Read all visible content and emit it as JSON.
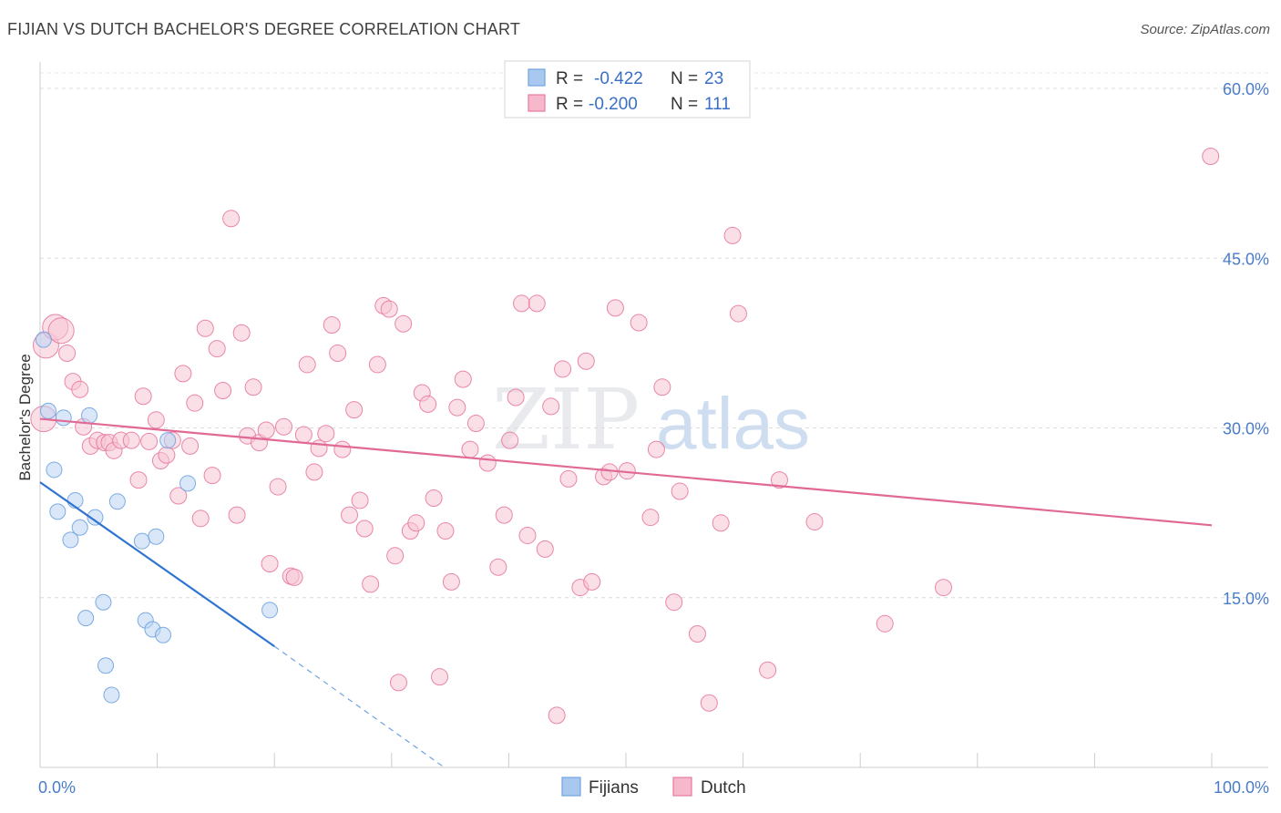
{
  "header": {
    "title": "FIJIAN VS DUTCH BACHELOR'S DEGREE CORRELATION CHART",
    "source": "Source: ZipAtlas.com"
  },
  "watermark": {
    "part1": "ZIP",
    "part2": "atlas"
  },
  "legend": {
    "rows": [
      {
        "r_label": "R =",
        "r_value": "-0.422",
        "n_label": "N =",
        "n_value": "23",
        "color": "#a8c8f0"
      },
      {
        "r_label": "R =",
        "r_value": "-0.200",
        "n_label": "N =",
        "n_value": "111",
        "color": "#f7b8cc"
      }
    ]
  },
  "bottom_legend": [
    {
      "label": "Fijians",
      "color": "#a8c8f0"
    },
    {
      "label": "Dutch",
      "color": "#f7b8cc"
    }
  ],
  "chart_data": {
    "type": "scatter",
    "ylabel": "Bachelor's Degree",
    "xlim": [
      0,
      100
    ],
    "ylim": [
      0,
      60
    ],
    "x_tick_labels": [
      {
        "value": 0,
        "label": "0.0%"
      },
      {
        "value": 100,
        "label": "100.0%"
      }
    ],
    "y_tick_labels": [
      {
        "value": 15,
        "label": "15.0%"
      },
      {
        "value": 30,
        "label": "30.0%"
      },
      {
        "value": 45,
        "label": "45.0%"
      },
      {
        "value": 60,
        "label": "60.0%"
      }
    ],
    "grid": "horizontal dashed",
    "series": [
      {
        "name": "Fijians",
        "color": "#6fa3e0",
        "fill": "#b9d3f4",
        "points": [
          [
            0.3,
            37.8
          ],
          [
            0.7,
            31.5
          ],
          [
            1.2,
            26.3
          ],
          [
            1.5,
            22.6
          ],
          [
            2.0,
            30.9
          ],
          [
            2.6,
            20.1
          ],
          [
            3.0,
            23.6
          ],
          [
            3.4,
            21.2
          ],
          [
            3.9,
            13.2
          ],
          [
            4.2,
            31.1
          ],
          [
            4.7,
            22.1
          ],
          [
            5.4,
            14.6
          ],
          [
            5.6,
            9.0
          ],
          [
            6.1,
            6.4
          ],
          [
            6.6,
            23.5
          ],
          [
            8.7,
            20.0
          ],
          [
            9.0,
            13.0
          ],
          [
            9.6,
            12.2
          ],
          [
            9.9,
            20.4
          ],
          [
            10.5,
            11.7
          ],
          [
            10.9,
            28.9
          ],
          [
            12.6,
            25.1
          ],
          [
            19.6,
            13.9
          ]
        ],
        "trend": {
          "x_start": 0,
          "y_start": 25.2,
          "x_solid_end": 20,
          "y_solid_end": 10.7,
          "x_dash_end": 34.5,
          "y_dash_end": 0
        }
      },
      {
        "name": "Dutch",
        "color": "#e77aa0",
        "fill": "#f8c4d4",
        "points": [
          [
            0.3,
            30.8
          ],
          [
            0.5,
            37.3
          ],
          [
            1.3,
            38.9
          ],
          [
            1.8,
            38.6
          ],
          [
            2.3,
            36.6
          ],
          [
            2.8,
            34.1
          ],
          [
            3.4,
            33.4
          ],
          [
            3.7,
            30.1
          ],
          [
            4.3,
            28.4
          ],
          [
            4.9,
            28.9
          ],
          [
            5.5,
            28.7
          ],
          [
            5.9,
            28.7
          ],
          [
            6.3,
            28.0
          ],
          [
            6.9,
            28.9
          ],
          [
            7.8,
            28.9
          ],
          [
            8.4,
            25.4
          ],
          [
            8.8,
            32.8
          ],
          [
            9.3,
            28.8
          ],
          [
            9.9,
            30.7
          ],
          [
            10.3,
            27.1
          ],
          [
            10.8,
            27.6
          ],
          [
            11.3,
            28.9
          ],
          [
            11.8,
            24.0
          ],
          [
            12.2,
            34.8
          ],
          [
            12.8,
            28.4
          ],
          [
            13.2,
            32.2
          ],
          [
            13.7,
            22.0
          ],
          [
            14.1,
            38.8
          ],
          [
            14.7,
            25.8
          ],
          [
            15.1,
            37.0
          ],
          [
            15.6,
            33.3
          ],
          [
            16.3,
            48.5
          ],
          [
            16.8,
            22.3
          ],
          [
            17.2,
            38.4
          ],
          [
            17.7,
            29.3
          ],
          [
            18.2,
            33.6
          ],
          [
            18.7,
            28.7
          ],
          [
            19.3,
            29.8
          ],
          [
            19.6,
            18.0
          ],
          [
            20.3,
            24.8
          ],
          [
            20.8,
            30.1
          ],
          [
            21.4,
            16.9
          ],
          [
            21.7,
            16.8
          ],
          [
            22.5,
            29.4
          ],
          [
            22.8,
            35.6
          ],
          [
            23.4,
            26.1
          ],
          [
            23.8,
            28.2
          ],
          [
            24.4,
            29.5
          ],
          [
            24.9,
            39.1
          ],
          [
            25.4,
            36.6
          ],
          [
            25.8,
            28.1
          ],
          [
            26.4,
            22.3
          ],
          [
            26.8,
            31.6
          ],
          [
            27.3,
            23.6
          ],
          [
            27.7,
            21.1
          ],
          [
            28.2,
            16.2
          ],
          [
            28.8,
            35.6
          ],
          [
            29.3,
            40.8
          ],
          [
            29.8,
            40.5
          ],
          [
            30.3,
            18.7
          ],
          [
            30.6,
            7.5
          ],
          [
            31.0,
            39.2
          ],
          [
            31.6,
            20.9
          ],
          [
            32.1,
            21.6
          ],
          [
            32.6,
            33.1
          ],
          [
            33.1,
            32.1
          ],
          [
            33.6,
            23.8
          ],
          [
            34.1,
            8.0
          ],
          [
            34.6,
            20.9
          ],
          [
            35.1,
            16.4
          ],
          [
            35.6,
            31.8
          ],
          [
            36.1,
            34.3
          ],
          [
            36.7,
            28.1
          ],
          [
            37.2,
            30.4
          ],
          [
            38.2,
            26.9
          ],
          [
            39.1,
            17.7
          ],
          [
            39.6,
            22.3
          ],
          [
            40.1,
            28.9
          ],
          [
            40.6,
            32.7
          ],
          [
            41.1,
            41.0
          ],
          [
            41.6,
            20.5
          ],
          [
            42.4,
            41.0
          ],
          [
            43.1,
            19.3
          ],
          [
            43.6,
            31.9
          ],
          [
            44.1,
            4.6
          ],
          [
            44.6,
            35.2
          ],
          [
            45.1,
            25.5
          ],
          [
            46.1,
            15.9
          ],
          [
            46.6,
            35.9
          ],
          [
            47.1,
            16.4
          ],
          [
            48.1,
            25.7
          ],
          [
            48.6,
            26.1
          ],
          [
            49.1,
            40.6
          ],
          [
            50.1,
            26.2
          ],
          [
            51.1,
            39.3
          ],
          [
            52.1,
            22.1
          ],
          [
            52.6,
            28.1
          ],
          [
            53.1,
            33.6
          ],
          [
            54.1,
            14.6
          ],
          [
            54.6,
            24.4
          ],
          [
            56.1,
            11.8
          ],
          [
            57.1,
            5.7
          ],
          [
            58.1,
            21.6
          ],
          [
            59.1,
            47.0
          ],
          [
            59.6,
            40.1
          ],
          [
            62.1,
            8.6
          ],
          [
            63.1,
            25.4
          ],
          [
            66.1,
            21.7
          ],
          [
            72.1,
            12.7
          ],
          [
            77.1,
            15.9
          ],
          [
            99.9,
            54.0
          ]
        ],
        "trend": {
          "x_start": 0,
          "y_start": 30.8,
          "x_end": 100,
          "y_end": 21.4
        }
      }
    ]
  }
}
